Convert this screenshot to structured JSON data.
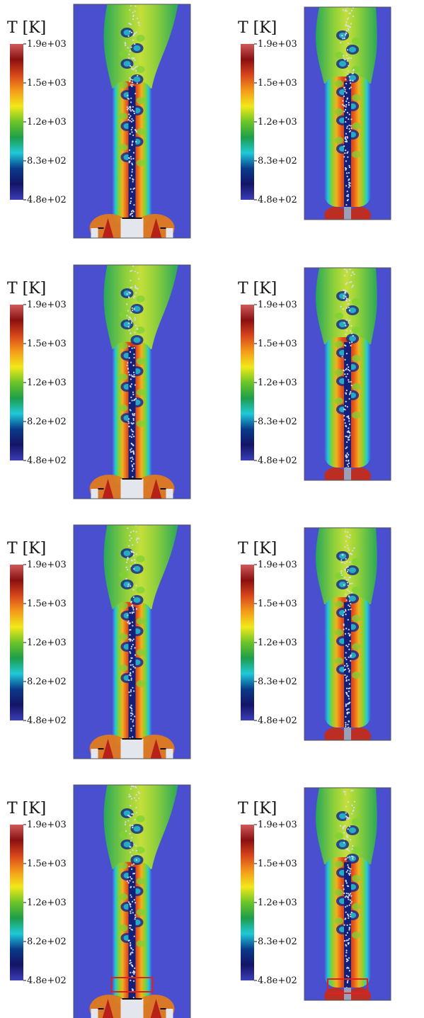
{
  "panels": [
    {
      "id": "row1-left",
      "colorbar": {
        "title": "T [K]",
        "ticks": [
          "1.9e+03",
          "1.5e+03",
          "1.2e+03",
          "8.3e+02",
          "4.8e+02"
        ]
      },
      "geometry_style": "bluff",
      "highlight_box": false
    },
    {
      "id": "row1-right",
      "colorbar": {
        "title": "T [K]",
        "ticks": [
          "1.9e+03",
          "1.5e+03",
          "1.2e+03",
          "8.3e+02",
          "4.8e+02"
        ]
      },
      "geometry_style": "flat",
      "highlight_box": false
    },
    {
      "id": "row2-left",
      "colorbar": {
        "title": "T [K]",
        "ticks": [
          "1.9e+03",
          "1.5e+03",
          "1.2e+03",
          "8.2e+02",
          "4.8e+02"
        ]
      },
      "geometry_style": "bluff",
      "highlight_box": false
    },
    {
      "id": "row2-right",
      "colorbar": {
        "title": "T [K]",
        "ticks": [
          "1.9e+03",
          "1.5e+03",
          "1.2e+03",
          "8.3e+02",
          "4.8e+02"
        ]
      },
      "geometry_style": "flat",
      "highlight_box": false
    },
    {
      "id": "row3-left",
      "colorbar": {
        "title": "T [K]",
        "ticks": [
          "1.9e+03",
          "1.5e+03",
          "1.2e+03",
          "8.2e+02",
          "4.8e+02"
        ]
      },
      "geometry_style": "bluff",
      "highlight_box": false
    },
    {
      "id": "row3-right",
      "colorbar": {
        "title": "T [K]",
        "ticks": [
          "1.9e+03",
          "1.5e+03",
          "1.2e+03",
          "8.3e+02",
          "4.8e+02"
        ]
      },
      "geometry_style": "flat",
      "highlight_box": false
    },
    {
      "id": "row4-left",
      "colorbar": {
        "title": "T [K]",
        "ticks": [
          "1.9e+03",
          "1.5e+03",
          "1.2e+03",
          "8.2e+02",
          "4.8e+02"
        ]
      },
      "geometry_style": "bluff",
      "highlight_box": true
    },
    {
      "id": "row4-right",
      "colorbar": {
        "title": "T [K]",
        "ticks": [
          "1.9e+03",
          "1.5e+03",
          "1.2e+03",
          "8.3e+02",
          "4.8e+02"
        ]
      },
      "geometry_style": "flat",
      "highlight_box": true
    }
  ],
  "colors": {
    "background": "#4a4fd0",
    "colormap": [
      "#3b3fb8",
      "#141466",
      "#0a3a8a",
      "#20c8d8",
      "#1e9e4a",
      "#6cc428",
      "#f2e81a",
      "#f39a1a",
      "#d8461c",
      "#8a1010",
      "#d05a5a"
    ],
    "flame_core": "#e5501c",
    "flame_mid": "#f0b21e",
    "flame_edge": "#7cd236",
    "spray": "#d8dbe8",
    "bluff_body": "#e4e6ee",
    "highlight_box": "#e0201e"
  }
}
